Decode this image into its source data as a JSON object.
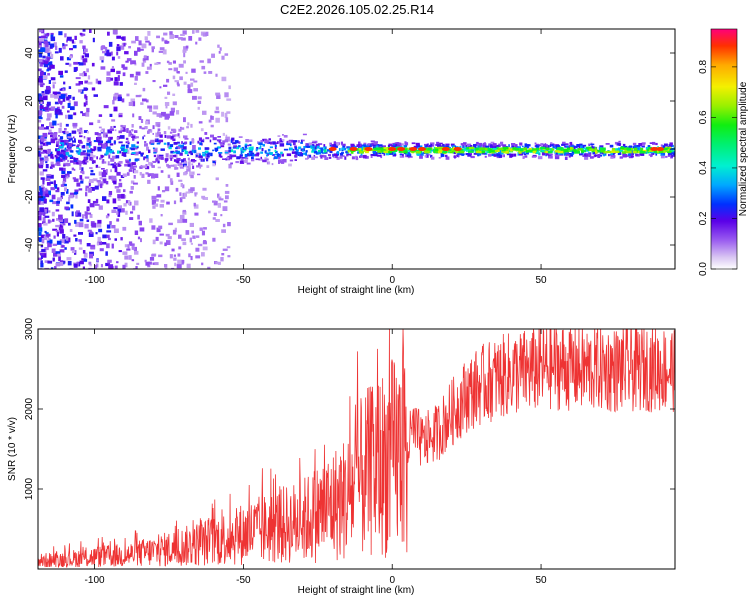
{
  "title": "C2E2.2026.105.02.25.R14",
  "chart_data": [
    {
      "type": "heatmap",
      "xlabel": "Height of straight line (km)",
      "ylabel": "Frequency (Hz)",
      "xlim": [
        -119,
        95
      ],
      "ylim": [
        -50,
        50
      ],
      "xticks": [
        -100,
        -50,
        0,
        50
      ],
      "yticks": [
        -40,
        -20,
        0,
        20,
        40
      ],
      "colorbar": {
        "label": "Normalized spectral amplitude",
        "range": [
          0,
          0.95
        ],
        "ticks": [
          0.0,
          0.2,
          0.4,
          0.6,
          0.8
        ],
        "tick_labels": [
          "0.0",
          "0.2",
          "0.4",
          "0.6",
          "0.8"
        ]
      },
      "band": {
        "center_freq_hz": 0,
        "description": "Signal energy concentrated near 0 Hz; scattered noise at low heights (below about -60 km), a continuous band from about -60 to 95 km with peak amplitude near 0-20 km and 85-92 km",
        "peak_positions_km": [
          -20,
          -13,
          -8,
          0,
          3,
          7,
          10,
          18,
          22,
          88,
          90
        ]
      }
    },
    {
      "type": "line",
      "xlabel": "Height of straight line (km)",
      "ylabel": "SNR (10 * v/v)",
      "xlim": [
        -119,
        95
      ],
      "ylim": [
        0,
        3000
      ],
      "xticks": [
        -100,
        -50,
        0,
        50
      ],
      "yticks": [
        1000,
        2000,
        3000
      ],
      "color": "#ee3333",
      "series": [
        {
          "name": "SNR",
          "x": [
            -119,
            -110,
            -100,
            -90,
            -80,
            -70,
            -60,
            -50,
            -40,
            -30,
            -25,
            -20,
            -15,
            -12,
            -10,
            -5,
            0,
            5,
            7,
            10,
            15,
            20,
            25,
            30,
            35,
            40,
            45,
            50,
            55,
            60,
            65,
            70,
            75,
            80,
            85,
            90,
            95
          ],
          "y": [
            100,
            120,
            150,
            170,
            220,
            280,
            350,
            440,
            520,
            600,
            700,
            800,
            900,
            1050,
            1150,
            1280,
            1400,
            1500,
            1750,
            1580,
            1700,
            1950,
            2180,
            2300,
            2380,
            2440,
            2470,
            2510,
            2540,
            2520,
            2500,
            2510,
            2490,
            2500,
            2520,
            2500,
            2510
          ]
        }
      ]
    }
  ]
}
